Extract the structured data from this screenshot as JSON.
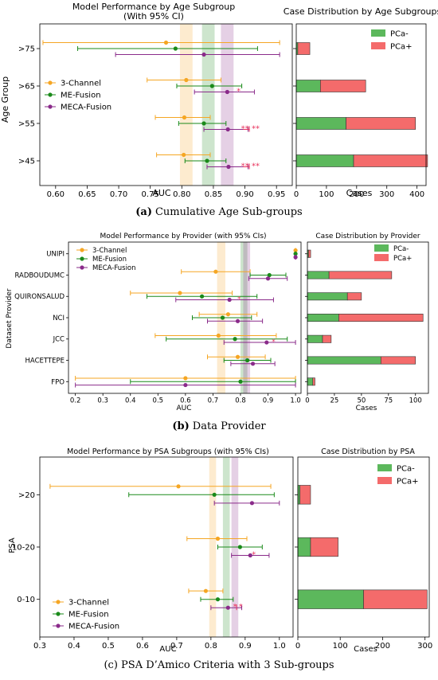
{
  "colors": {
    "three": "#f5a623",
    "me": "#1a8a1a",
    "meca": "#8a2b8a",
    "neg": "#5cb85c",
    "pos": "#f46b6b",
    "sig": "#e8335d"
  },
  "legend_forest": [
    "3-Channel",
    "ME-Fusion",
    "MECA-Fusion"
  ],
  "legend_cases": [
    "PCa-",
    "PCa+"
  ],
  "panels": [
    {
      "caption_bold": "(a)",
      "caption_text": "Cumulative Age Sub-groups",
      "forest": {
        "title": "Model Performance by Age Subgroup",
        "title2": "(With 95% CI)",
        "xlabel": "AUC",
        "ylabel": "Age Group",
        "xlim": [
          0.575,
          0.975
        ],
        "xticks": [
          0.6,
          0.65,
          0.7,
          0.75,
          0.8,
          0.85,
          0.9,
          0.95
        ],
        "xtick_labels": [
          "0.60",
          "0.65",
          "0.70",
          "0.75",
          "0.80",
          "0.85",
          "0.90",
          "0.95"
        ],
        "categories": [
          ">75",
          ">65",
          ">55",
          ">45"
        ],
        "bands": [
          [
            0.797,
            0.817
          ],
          [
            0.832,
            0.852
          ],
          [
            0.862,
            0.882
          ]
        ],
        "series": [
          {
            "name": "3-Channel",
            "auc": [
              0.775,
              0.807,
              0.804,
              0.803
            ],
            "lo": [
              0.58,
              0.745,
              0.758,
              0.76
            ],
            "hi": [
              0.955,
              0.862,
              0.845,
              0.845
            ]
          },
          {
            "name": "ME-Fusion",
            "auc": [
              0.79,
              0.848,
              0.835,
              0.84
            ],
            "lo": [
              0.635,
              0.792,
              0.795,
              0.805
            ],
            "hi": [
              0.92,
              0.895,
              0.87,
              0.87
            ]
          },
          {
            "name": "MECA-Fusion",
            "auc": [
              0.835,
              0.872,
              0.873,
              0.874
            ],
            "lo": [
              0.695,
              0.82,
              0.835,
              0.84
            ],
            "hi": [
              0.955,
              0.915,
              0.905,
              0.905
            ]
          }
        ],
        "sig": [
          {
            "row": 1,
            "xs": [
              0.89
            ],
            "y": -0.04,
            "label": "*"
          },
          {
            "row": 2,
            "xs": [
              0.9
            ],
            "y": -0.07,
            "label": "**"
          },
          {
            "row": 2,
            "xs": [
              0.897,
              0.907
            ],
            "bracket": true,
            "y": 0.0
          },
          {
            "row": 2,
            "xs": [
              0.917
            ],
            "y": -0.07,
            "label": "**"
          },
          {
            "row": 3,
            "xs": [
              0.9
            ],
            "y": -0.07,
            "label": "**"
          },
          {
            "row": 3,
            "xs": [
              0.897,
              0.907
            ],
            "bracket": true,
            "y": 0.0
          },
          {
            "row": 3,
            "xs": [
              0.917
            ],
            "y": -0.07,
            "label": "**"
          }
        ]
      },
      "cases": {
        "title": "Case Distribution by Age Subgroups",
        "xlabel": "Cases",
        "xlim": [
          0,
          430
        ],
        "xticks": [
          0,
          100,
          200,
          300,
          400
        ],
        "neg": [
          5,
          80,
          165,
          190
        ],
        "pos": [
          40,
          150,
          230,
          245
        ]
      }
    },
    {
      "caption_bold": "(b)",
      "caption_text": "Data Provider",
      "forest": {
        "title": "Model Performance by Provider (with 95% CIs)",
        "title2": "",
        "xlabel": "AUC",
        "ylabel": "Dataset Provider",
        "xlim": [
          0.175,
          1.02
        ],
        "xticks": [
          0.2,
          0.3,
          0.4,
          0.5,
          0.6,
          0.7,
          0.8,
          0.9,
          1.0
        ],
        "xtick_labels": [
          "0.2",
          "0.3",
          "0.4",
          "0.5",
          "0.6",
          "0.7",
          "0.8",
          "0.9",
          "1.0"
        ],
        "categories": [
          "UNIPI",
          "RADBOUDUMC",
          "QUIRONSALUD",
          "NCI",
          "JCC",
          "HACETTEPE",
          "FPO"
        ],
        "bands": [
          [
            0.715,
            0.745
          ],
          [
            0.8,
            0.825
          ],
          [
            0.81,
            0.835
          ]
        ],
        "series": [
          {
            "name": "3-Channel",
            "auc": [
              1.0,
              0.71,
              0.58,
              0.755,
              0.72,
              0.79,
              0.6
            ],
            "lo": [
              1.0,
              0.585,
              0.4,
              0.65,
              0.49,
              0.68,
              0.2
            ],
            "hi": [
              1.0,
              0.835,
              0.77,
              0.86,
              0.93,
              0.89,
              1.0
            ]
          },
          {
            "name": "ME-Fusion",
            "auc": [
              1.0,
              0.905,
              0.66,
              0.735,
              0.78,
              0.825,
              0.8
            ],
            "lo": [
              1.0,
              0.835,
              0.46,
              0.625,
              0.53,
              0.74,
              0.4
            ],
            "hi": [
              1.0,
              0.965,
              0.86,
              0.84,
              0.97,
              0.91,
              1.0
            ]
          },
          {
            "name": "MECA-Fusion",
            "auc": [
              1.0,
              0.9,
              0.76,
              0.79,
              0.895,
              0.845,
              0.6
            ],
            "lo": [
              1.0,
              0.83,
              0.565,
              0.68,
              0.74,
              0.765,
              0.2
            ],
            "hi": [
              1.0,
              0.97,
              0.92,
              0.88,
              1.0,
              0.925,
              1.0
            ]
          }
        ],
        "sig": [
          {
            "row": 2,
            "xs": [
              0.795
            ],
            "y": -0.05,
            "label": "*"
          },
          {
            "row": 4,
            "xs": [
              0.92
            ],
            "y": -0.05,
            "label": "*"
          }
        ]
      },
      "cases": {
        "title": "Case Distribution by Provider",
        "xlabel": "Cases",
        "xlim": [
          0,
          112
        ],
        "xticks": [
          0,
          25,
          50,
          75,
          100
        ],
        "neg": [
          1,
          20,
          37,
          29,
          14,
          68,
          5
        ],
        "pos": [
          2,
          58,
          13,
          78,
          8,
          32,
          2
        ]
      }
    },
    {
      "caption_bold": "",
      "caption_text": "(c) PSA D’Amico Criteria with 3 Sub-groups",
      "forest": {
        "title": "Model Performance by PSA Subgroups (with 95% CIs)",
        "title2": "",
        "xlabel": "AUC",
        "ylabel": "PSA",
        "xlim": [
          0.3,
          1.04
        ],
        "xticks": [
          0.3,
          0.4,
          0.5,
          0.6,
          0.7,
          0.8,
          0.9,
          1.0
        ],
        "xtick_labels": [
          "0.3",
          "0.4",
          "0.5",
          "0.6",
          "0.7",
          "0.8",
          "0.9",
          "1.0"
        ],
        "categories": [
          ">20",
          "10-20",
          "0-10"
        ],
        "bands": [
          [
            0.795,
            0.815
          ],
          [
            0.835,
            0.855
          ],
          [
            0.86,
            0.88
          ]
        ],
        "series": [
          {
            "name": "3-Channel",
            "auc": [
              0.705,
              0.82,
              0.785
            ],
            "lo": [
              0.33,
              0.73,
              0.735
            ],
            "hi": [
              0.975,
              0.905,
              0.835
            ]
          },
          {
            "name": "ME-Fusion",
            "auc": [
              0.81,
              0.885,
              0.82
            ],
            "lo": [
              0.56,
              0.82,
              0.77
            ],
            "hi": [
              0.985,
              0.95,
              0.865
            ]
          },
          {
            "name": "MECA-Fusion",
            "auc": [
              0.92,
              0.915,
              0.85
            ],
            "lo": [
              0.81,
              0.86,
              0.8
            ],
            "hi": [
              1.0,
              0.97,
              0.89
            ]
          }
        ],
        "sig": [
          {
            "row": 1,
            "xs": [
              0.925
            ],
            "y": -0.05,
            "label": "*"
          },
          {
            "row": 2,
            "xs": [
              0.87
            ],
            "y": -0.05,
            "label": "*"
          },
          {
            "row": 2,
            "xs": [
              0.887
            ],
            "y": -0.05,
            "label": "*"
          },
          {
            "row": 2,
            "xs": [
              0.875
            ],
            "bracket": true,
            "y": 0.0
          }
        ]
      },
      "cases": {
        "title": "Case Distribution by PSA",
        "xlabel": "Cases",
        "xlim": [
          0,
          310
        ],
        "xticks": [
          0,
          100,
          200,
          300
        ],
        "neg": [
          5,
          30,
          155
        ],
        "pos": [
          25,
          65,
          150
        ]
      }
    }
  ],
  "chart_data": [
    {
      "type": "scatter",
      "title": "Model Performance by Age Subgroup (With 95% CI)",
      "xlabel": "AUC",
      "ylabel": "Age Group",
      "categories": [
        ">75",
        ">65",
        ">55",
        ">45"
      ],
      "xlim": [
        0.575,
        0.975
      ],
      "series": [
        {
          "name": "3-Channel",
          "auc": [
            0.775,
            0.807,
            0.804,
            0.803
          ],
          "ci_low": [
            0.58,
            0.745,
            0.758,
            0.76
          ],
          "ci_high": [
            0.955,
            0.862,
            0.845,
            0.845
          ]
        },
        {
          "name": "ME-Fusion",
          "auc": [
            0.79,
            0.848,
            0.835,
            0.84
          ],
          "ci_low": [
            0.635,
            0.792,
            0.795,
            0.805
          ],
          "ci_high": [
            0.92,
            0.895,
            0.87,
            0.87
          ]
        },
        {
          "name": "MECA-Fusion",
          "auc": [
            0.835,
            0.872,
            0.873,
            0.874
          ],
          "ci_low": [
            0.695,
            0.82,
            0.835,
            0.84
          ],
          "ci_high": [
            0.955,
            0.915,
            0.905,
            0.905
          ]
        }
      ],
      "legend": "center-left"
    },
    {
      "type": "bar",
      "title": "Case Distribution by Age Subgroups",
      "xlabel": "Cases",
      "categories": [
        ">75",
        ">65",
        ">55",
        ">45"
      ],
      "series": [
        {
          "name": "PCa-",
          "values": [
            5,
            80,
            165,
            190
          ]
        },
        {
          "name": "PCa+",
          "values": [
            40,
            150,
            230,
            245
          ]
        }
      ],
      "stacked": true,
      "xlim": [
        0,
        430
      ],
      "legend": "top-right"
    },
    {
      "type": "scatter",
      "title": "Model Performance by Provider (with 95% CIs)",
      "xlabel": "AUC",
      "ylabel": "Dataset Provider",
      "categories": [
        "UNIPI",
        "RADBOUDUMC",
        "QUIRONSALUD",
        "NCI",
        "JCC",
        "HACETTEPE",
        "FPO"
      ],
      "xlim": [
        0.175,
        1.02
      ],
      "series": [
        {
          "name": "3-Channel",
          "auc": [
            1.0,
            0.71,
            0.58,
            0.755,
            0.72,
            0.79,
            0.6
          ],
          "ci_low": [
            1.0,
            0.585,
            0.4,
            0.65,
            0.49,
            0.68,
            0.2
          ],
          "ci_high": [
            1.0,
            0.835,
            0.77,
            0.86,
            0.93,
            0.89,
            1.0
          ]
        },
        {
          "name": "ME-Fusion",
          "auc": [
            1.0,
            0.905,
            0.66,
            0.735,
            0.78,
            0.825,
            0.8
          ],
          "ci_low": [
            1.0,
            0.835,
            0.46,
            0.625,
            0.53,
            0.74,
            0.4
          ],
          "ci_high": [
            1.0,
            0.965,
            0.86,
            0.84,
            0.97,
            0.91,
            1.0
          ]
        },
        {
          "name": "MECA-Fusion",
          "auc": [
            1.0,
            0.9,
            0.76,
            0.79,
            0.895,
            0.845,
            0.6
          ],
          "ci_low": [
            1.0,
            0.83,
            0.565,
            0.68,
            0.74,
            0.765,
            0.2
          ],
          "ci_high": [
            1.0,
            0.97,
            0.92,
            0.88,
            1.0,
            0.925,
            1.0
          ]
        }
      ],
      "legend": "top-left"
    },
    {
      "type": "bar",
      "title": "Case Distribution by Provider",
      "xlabel": "Cases",
      "categories": [
        "UNIPI",
        "RADBOUDUMC",
        "QUIRONSALUD",
        "NCI",
        "JCC",
        "HACETTEPE",
        "FPO"
      ],
      "series": [
        {
          "name": "PCa-",
          "values": [
            1,
            20,
            37,
            29,
            14,
            68,
            5
          ]
        },
        {
          "name": "PCa+",
          "values": [
            2,
            58,
            13,
            78,
            8,
            32,
            2
          ]
        }
      ],
      "stacked": true,
      "xlim": [
        0,
        112
      ],
      "legend": "top-right"
    },
    {
      "type": "scatter",
      "title": "Model Performance by PSA Subgroups (with 95% CIs)",
      "xlabel": "AUC",
      "ylabel": "PSA",
      "categories": [
        ">20",
        "10-20",
        "0-10"
      ],
      "xlim": [
        0.3,
        1.04
      ],
      "series": [
        {
          "name": "3-Channel",
          "auc": [
            0.705,
            0.82,
            0.785
          ],
          "ci_low": [
            0.33,
            0.73,
            0.735
          ],
          "ci_high": [
            0.975,
            0.905,
            0.835
          ]
        },
        {
          "name": "ME-Fusion",
          "auc": [
            0.81,
            0.885,
            0.82
          ],
          "ci_low": [
            0.56,
            0.82,
            0.77
          ],
          "ci_high": [
            0.985,
            0.95,
            0.865
          ]
        },
        {
          "name": "MECA-Fusion",
          "auc": [
            0.92,
            0.915,
            0.85
          ],
          "ci_low": [
            0.81,
            0.86,
            0.8
          ],
          "ci_high": [
            1.0,
            0.97,
            0.89
          ]
        }
      ],
      "legend": "bottom-left"
    },
    {
      "type": "bar",
      "title": "Case Distribution by PSA",
      "xlabel": "Cases",
      "categories": [
        ">20",
        "10-20",
        "0-10"
      ],
      "series": [
        {
          "name": "PCa-",
          "values": [
            5,
            30,
            155
          ]
        },
        {
          "name": "PCa+",
          "values": [
            25,
            65,
            150
          ]
        }
      ],
      "stacked": true,
      "xlim": [
        0,
        310
      ],
      "legend": "top-right"
    }
  ]
}
